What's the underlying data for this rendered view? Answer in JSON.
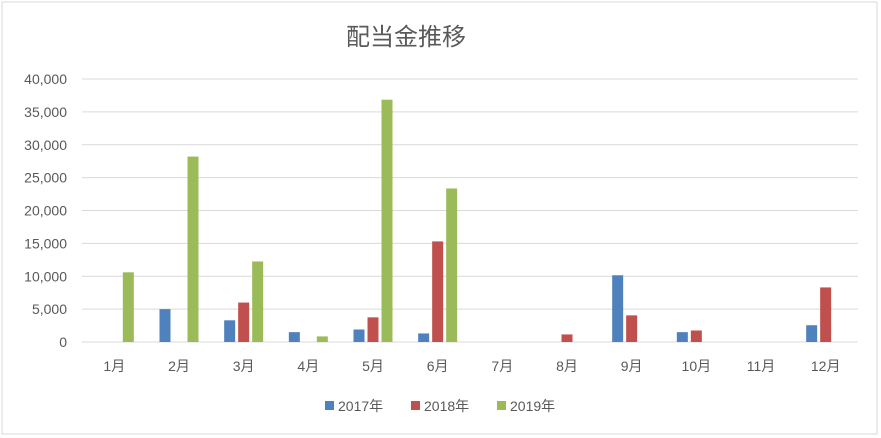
{
  "chart_data": {
    "type": "bar",
    "title": "配当金推移",
    "xlabel": "",
    "ylabel": "",
    "ylim": [
      0,
      40000
    ],
    "yticks": [
      0,
      5000,
      10000,
      15000,
      20000,
      25000,
      30000,
      35000,
      40000
    ],
    "ytick_labels": [
      "0",
      "5,000",
      "10,000",
      "15,000",
      "20,000",
      "25,000",
      "30,000",
      "35,000",
      "40,000"
    ],
    "grid": true,
    "legend_position": "bottom",
    "categories": [
      "1月",
      "2月",
      "3月",
      "4月",
      "5月",
      "6月",
      "7月",
      "8月",
      "9月",
      "10月",
      "11月",
      "12月"
    ],
    "series": [
      {
        "name": "2017年",
        "color": "#4f81bd",
        "values": [
          0,
          5000,
          3300,
          1500,
          1900,
          1300,
          0,
          0,
          10150,
          1500,
          0,
          2550
        ]
      },
      {
        "name": "2018年",
        "color": "#c0504d",
        "values": [
          0,
          0,
          6000,
          0,
          3750,
          15300,
          0,
          1150,
          4050,
          1750,
          0,
          8300
        ]
      },
      {
        "name": "2019年",
        "color": "#9bbb59",
        "values": [
          10600,
          28200,
          12250,
          850,
          36850,
          23350,
          0,
          0,
          0,
          0,
          0,
          0
        ]
      }
    ]
  }
}
